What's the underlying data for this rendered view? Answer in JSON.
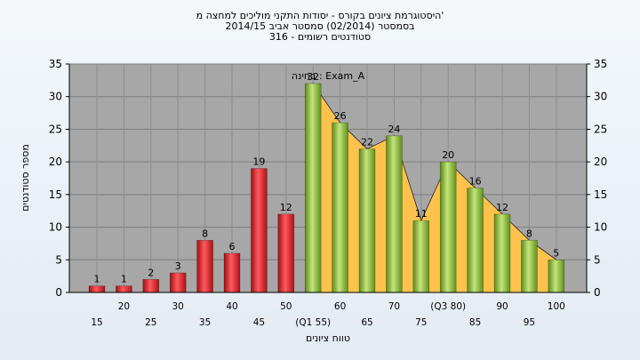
{
  "chart_data": {
    "type": "bar",
    "title_lines": [
      "היסטוגרמת ציונים בקורס - יסודות התקני מוליכים למחצה מ'",
      "בסמסטר  (02/2014)  סמסטר אביב 2014/15",
      "סטודנטים רשומים - 316"
    ],
    "xlabel": "טווח ציונים",
    "ylabel": "מספר סטודנטים",
    "annotation": "בחינה : Exam_A",
    "ylim": [
      0,
      35
    ],
    "yticks": [
      0,
      5,
      10,
      15,
      20,
      25,
      30,
      35
    ],
    "categories": [
      "15",
      "20",
      "25",
      "30",
      "35",
      "40",
      "45",
      "50",
      "(Q1 55)",
      "60",
      "65",
      "70",
      "75",
      "(Q3 80)",
      "85",
      "90",
      "95",
      "100"
    ],
    "values": [
      1,
      1,
      2,
      3,
      8,
      6,
      19,
      12,
      32,
      26,
      22,
      24,
      11,
      20,
      16,
      12,
      8,
      5
    ],
    "bar_colors": [
      "red",
      "red",
      "red",
      "red",
      "red",
      "red",
      "red",
      "red",
      "green",
      "green",
      "green",
      "green",
      "green",
      "green",
      "green",
      "green",
      "green",
      "green"
    ],
    "colors": {
      "red": "#e0262b",
      "green": "#8fc13a",
      "area": "#ffc34d",
      "plot_bg": "#a7a7a7"
    }
  }
}
